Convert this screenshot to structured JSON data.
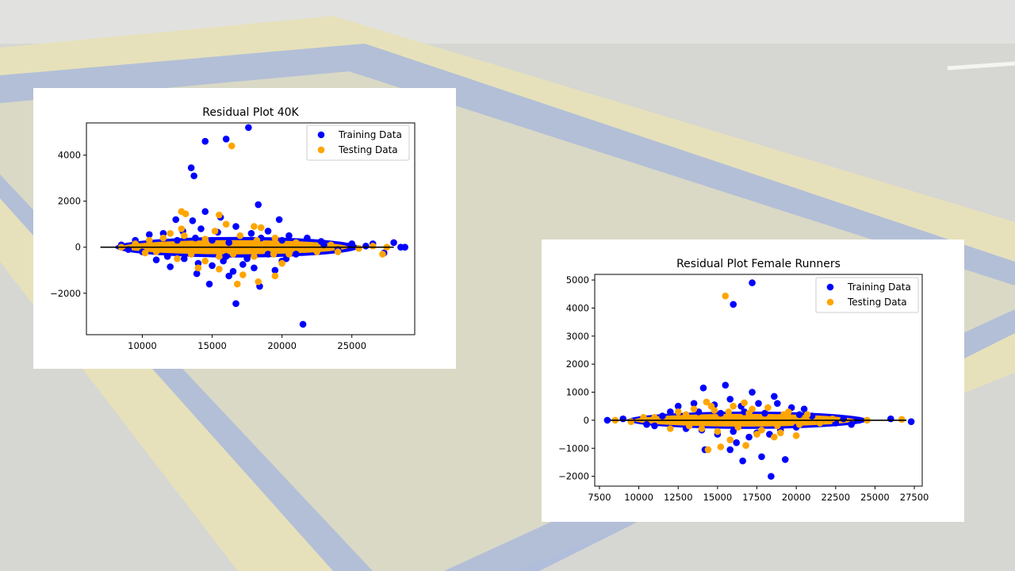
{
  "slide": {
    "colors": {
      "asphalt": "#d6d6d3",
      "paint_blue": "#9fb0d8",
      "paint_yellow": "#e9e3b8",
      "road_white": "#f2f2f0"
    }
  },
  "chart_data": [
    {
      "type": "scatter",
      "title": "Residual Plot 40K",
      "xlabel": "",
      "ylabel": "",
      "xlim": [
        6000,
        29500
      ],
      "ylim": [
        -3800,
        5400
      ],
      "xticks": [
        10000,
        15000,
        20000,
        25000
      ],
      "xtick_labels": [
        "10000",
        "15000",
        "20000",
        "25000"
      ],
      "yticks": [
        -2000,
        0,
        2000,
        4000
      ],
      "ytick_labels": [
        "−2000",
        "0",
        "2000",
        "4000"
      ],
      "legend": {
        "position": "top-right",
        "entries": [
          "Training Data",
          "Testing Data"
        ]
      },
      "hline": {
        "y": 0,
        "xmin": 7000,
        "xmax": 28000,
        "color": "#000000"
      },
      "series": [
        {
          "name": "Training Data",
          "color": "#0000ff",
          "points": [
            [
              17600,
              5200
            ],
            [
              16000,
              4700
            ],
            [
              14500,
              4600
            ],
            [
              13500,
              3450
            ],
            [
              13700,
              3100
            ],
            [
              18300,
              1850
            ],
            [
              19800,
              1200
            ],
            [
              14500,
              1550
            ],
            [
              13600,
              1150
            ],
            [
              15600,
              1300
            ],
            [
              12400,
              1200
            ],
            [
              16700,
              -2450
            ],
            [
              21500,
              -3350
            ],
            [
              14800,
              -1600
            ],
            [
              13900,
              -1150
            ],
            [
              16500,
              -1050
            ],
            [
              18400,
              -1700
            ],
            [
              16200,
              -1250
            ],
            [
              19500,
              -1000
            ],
            [
              15800,
              -600
            ],
            [
              18000,
              -900
            ],
            [
              17200,
              -750
            ],
            [
              12000,
              -850
            ],
            [
              11000,
              -550
            ],
            [
              20300,
              -500
            ],
            [
              28500,
              0
            ],
            [
              28800,
              0
            ],
            [
              28000,
              200
            ],
            [
              26500,
              150
            ],
            [
              25000,
              150
            ],
            [
              23000,
              100
            ],
            [
              9000,
              -100
            ],
            [
              8500,
              100
            ],
            [
              10500,
              550
            ],
            [
              11500,
              600
            ],
            [
              12900,
              700
            ],
            [
              14200,
              800
            ],
            [
              15400,
              650
            ],
            [
              16700,
              900
            ],
            [
              17800,
              600
            ],
            [
              19000,
              700
            ],
            [
              20500,
              500
            ],
            [
              21800,
              400
            ],
            [
              22800,
              250
            ],
            [
              13000,
              -500
            ],
            [
              14000,
              -700
            ],
            [
              15000,
              -800
            ],
            [
              16000,
              -400
            ],
            [
              17500,
              -500
            ],
            [
              19000,
              -300
            ],
            [
              20000,
              -600
            ],
            [
              21000,
              -300
            ],
            [
              9500,
              300
            ],
            [
              10000,
              -200
            ],
            [
              11800,
              -400
            ],
            [
              12500,
              300
            ],
            [
              13800,
              400
            ],
            [
              15000,
              300
            ],
            [
              16200,
              200
            ],
            [
              18500,
              400
            ],
            [
              20000,
              300
            ],
            [
              24000,
              -100
            ],
            [
              26000,
              50
            ],
            [
              27300,
              -250
            ]
          ]
        },
        {
          "name": "Testing Data",
          "color": "#ffa500",
          "points": [
            [
              16400,
              4400
            ],
            [
              15500,
              1400
            ],
            [
              12800,
              1550
            ],
            [
              13100,
              1450
            ],
            [
              18000,
              900
            ],
            [
              18500,
              850
            ],
            [
              16000,
              1000
            ],
            [
              14000,
              -900
            ],
            [
              15500,
              -950
            ],
            [
              16800,
              -1600
            ],
            [
              17200,
              -1200
            ],
            [
              18300,
              -1500
            ],
            [
              19500,
              -1250
            ],
            [
              20000,
              -700
            ],
            [
              12500,
              -500
            ],
            [
              10500,
              300
            ],
            [
              12000,
              600
            ],
            [
              13000,
              500
            ],
            [
              14500,
              350
            ],
            [
              15500,
              -400
            ],
            [
              17000,
              500
            ],
            [
              18200,
              300
            ],
            [
              19400,
              -300
            ],
            [
              21000,
              200
            ],
            [
              22500,
              -200
            ],
            [
              24000,
              -200
            ],
            [
              26500,
              50
            ],
            [
              27500,
              0
            ],
            [
              8500,
              0
            ],
            [
              9500,
              150
            ],
            [
              11000,
              -200
            ],
            [
              13500,
              -300
            ],
            [
              14500,
              -600
            ],
            [
              16500,
              -300
            ],
            [
              18000,
              -400
            ],
            [
              19500,
              400
            ],
            [
              20500,
              -300
            ],
            [
              15200,
              700
            ],
            [
              12800,
              800
            ],
            [
              11500,
              400
            ],
            [
              10200,
              -250
            ],
            [
              23500,
              100
            ],
            [
              25500,
              -50
            ],
            [
              27200,
              -300
            ]
          ]
        }
      ]
    },
    {
      "type": "scatter",
      "title": "Residual Plot Female Runners",
      "xlabel": "",
      "ylabel": "",
      "xlim": [
        7200,
        28000
      ],
      "ylim": [
        -2350,
        5200
      ],
      "xticks": [
        7500,
        10000,
        12500,
        15000,
        17500,
        20000,
        22500,
        25000,
        27500
      ],
      "xtick_labels": [
        "7500",
        "10000",
        "12500",
        "15000",
        "17500",
        "20000",
        "22500",
        "25000",
        "27500"
      ],
      "yticks": [
        -2000,
        -1000,
        0,
        1000,
        2000,
        3000,
        4000,
        5000
      ],
      "ytick_labels": [
        "−2000",
        "−1000",
        "0",
        "1000",
        "2000",
        "3000",
        "4000",
        "5000"
      ],
      "legend": {
        "position": "top-right",
        "entries": [
          "Training Data",
          "Testing Data"
        ]
      },
      "hline": {
        "y": 0,
        "xmin": 8200,
        "xmax": 27000,
        "color": "#000000"
      },
      "series": [
        {
          "name": "Training Data",
          "color": "#0000ff",
          "points": [
            [
              17200,
              4900
            ],
            [
              16000,
              4130
            ],
            [
              15500,
              1250
            ],
            [
              14100,
              1150
            ],
            [
              17200,
              1000
            ],
            [
              18600,
              850
            ],
            [
              20500,
              400
            ],
            [
              16600,
              -1450
            ],
            [
              17800,
              -1300
            ],
            [
              19300,
              -1400
            ],
            [
              18400,
              -2000
            ],
            [
              14200,
              -1050
            ],
            [
              15800,
              -1050
            ],
            [
              16200,
              -800
            ],
            [
              17000,
              -600
            ],
            [
              18300,
              -500
            ],
            [
              27300,
              -50
            ],
            [
              26000,
              50
            ],
            [
              24000,
              0
            ],
            [
              23500,
              -150
            ],
            [
              23000,
              50
            ],
            [
              22500,
              -100
            ],
            [
              8000,
              0
            ],
            [
              9000,
              50
            ],
            [
              10500,
              -150
            ],
            [
              11500,
              150
            ],
            [
              12500,
              500
            ],
            [
              13500,
              600
            ],
            [
              14800,
              550
            ],
            [
              15800,
              750
            ],
            [
              16500,
              500
            ],
            [
              17600,
              600
            ],
            [
              18800,
              600
            ],
            [
              19700,
              450
            ],
            [
              21000,
              150
            ],
            [
              13000,
              -300
            ],
            [
              14000,
              -350
            ],
            [
              15000,
              -500
            ],
            [
              16000,
              -400
            ],
            [
              17500,
              -450
            ],
            [
              19000,
              -350
            ],
            [
              20000,
              -250
            ],
            [
              21500,
              -100
            ],
            [
              12000,
              300
            ],
            [
              11000,
              -200
            ],
            [
              13800,
              300
            ],
            [
              15200,
              250
            ],
            [
              16700,
              300
            ],
            [
              18000,
              250
            ],
            [
              20200,
              200
            ]
          ]
        },
        {
          "name": "Testing Data",
          "color": "#ffa500",
          "points": [
            [
              15500,
              4430
            ],
            [
              14300,
              650
            ],
            [
              16700,
              620
            ],
            [
              14400,
              -1050
            ],
            [
              15200,
              -950
            ],
            [
              16800,
              -900
            ],
            [
              15800,
              -700
            ],
            [
              17500,
              -500
            ],
            [
              18600,
              -600
            ],
            [
              19000,
              -450
            ],
            [
              20000,
              -550
            ],
            [
              12000,
              -300
            ],
            [
              11000,
              100
            ],
            [
              12500,
              300
            ],
            [
              13500,
              400
            ],
            [
              14800,
              350
            ],
            [
              16000,
              500
            ],
            [
              17200,
              400
            ],
            [
              18200,
              450
            ],
            [
              19500,
              300
            ],
            [
              20700,
              200
            ],
            [
              21500,
              -100
            ],
            [
              22300,
              50
            ],
            [
              24500,
              0
            ],
            [
              26700,
              30
            ],
            [
              8500,
              0
            ],
            [
              9500,
              -50
            ],
            [
              10300,
              100
            ],
            [
              13200,
              -200
            ],
            [
              14000,
              -300
            ],
            [
              15000,
              -400
            ],
            [
              16300,
              -250
            ],
            [
              17800,
              -350
            ],
            [
              18800,
              -200
            ],
            [
              20200,
              -150
            ],
            [
              13000,
              200
            ],
            [
              14600,
              500
            ],
            [
              15700,
              300
            ],
            [
              17000,
              250
            ],
            [
              19200,
              200
            ]
          ]
        }
      ]
    }
  ]
}
